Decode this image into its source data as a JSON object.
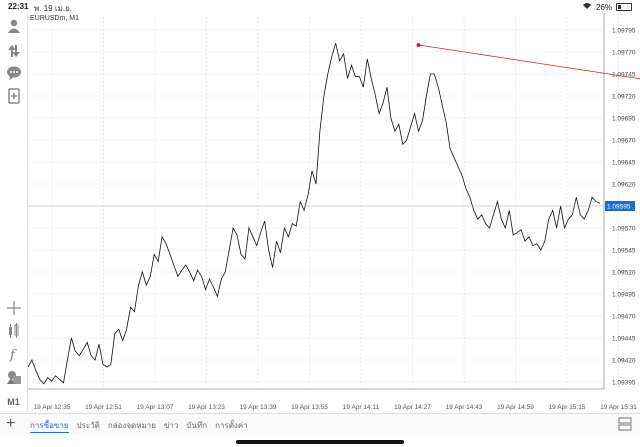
{
  "status": {
    "time": "22:31",
    "date": "พ. 19 เม.ย.",
    "battery": "26%"
  },
  "symbol": "EURUSDm, M1",
  "sidebar": {
    "icons": [
      "account-icon",
      "trade-arrows-icon",
      "chat-icon",
      "document-icon",
      "crosshair-icon",
      "indicator-icon",
      "function-icon",
      "objects-icon"
    ],
    "timeframe": "M1"
  },
  "tabs": [
    "การซื้อขาย",
    "ประวัติ",
    "กล่องจดหมาย",
    "ข่าว",
    "บันทึก",
    "การตั้งค่า"
  ],
  "active_tab": 0,
  "colors": {
    "accent": "#2a6fd6",
    "line": "#111111",
    "trendline": "#d32020",
    "price_tag": "#1e6ec8"
  },
  "chart_data": {
    "type": "line",
    "xlabels": [
      "19 Apr 12:35",
      "19 Apr 12:51",
      "19 Apr 13:07",
      "19 Apr 13:23",
      "19 Apr 13:39",
      "19 Apr 13:55",
      "19 Apr 14:11",
      "19 Apr 14:27",
      "19 Apr 14:43",
      "19 Apr 14:59",
      "19 Apr 15:15",
      "19 Apr 15:31"
    ],
    "yticks": [
      "1.09795",
      "1.09770",
      "1.09745",
      "1.09720",
      "1.09695",
      "1.09670",
      "1.09645",
      "1.09620",
      "1.09595",
      "1.09570",
      "1.09545",
      "1.09520",
      "1.09495",
      "1.09470",
      "1.09445",
      "1.09420",
      "1.09395"
    ],
    "ylim": [
      1.0938,
      1.098
    ],
    "current_price": 1.09595,
    "current_price_label": "1.09595",
    "trendline": {
      "from": {
        "x": 99,
        "y": 1.09778
      },
      "to": {
        "x": 213,
        "y": 1.097
      },
      "mid_anchor": {
        "x": 160,
        "y": 1.0974
      }
    },
    "values": [
      1.09412,
      1.0942,
      1.09408,
      1.09398,
      1.09393,
      1.094,
      1.09396,
      1.09402,
      1.09398,
      1.09394,
      1.0942,
      1.09445,
      1.0943,
      1.09425,
      1.09432,
      1.0944,
      1.09425,
      1.0942,
      1.09438,
      1.09415,
      1.09412,
      1.09415,
      1.0945,
      1.09455,
      1.09442,
      1.09455,
      1.0948,
      1.09475,
      1.09505,
      1.0952,
      1.09505,
      1.09515,
      1.0954,
      1.09532,
      1.0956,
      1.09552,
      1.0954,
      1.09527,
      1.09515,
      1.09522,
      1.09528,
      1.0952,
      1.0951,
      1.09522,
      1.09515,
      1.095,
      1.09512,
      1.09503,
      1.09492,
      1.09512,
      1.0952,
      1.09545,
      1.0957,
      1.09562,
      1.0954,
      1.09535,
      1.0957,
      1.0956,
      1.0955,
      1.09565,
      1.09578,
      1.09545,
      1.09525,
      1.09555,
      1.09542,
      1.0957,
      1.0956,
      1.09575,
      1.09572,
      1.096,
      1.0959,
      1.09608,
      1.09635,
      1.0962,
      1.0968,
      1.0972,
      1.09745,
      1.09765,
      1.0978,
      1.0976,
      1.09768,
      1.0974,
      1.09755,
      1.09742,
      1.09742,
      1.0973,
      1.09762,
      1.0974,
      1.09722,
      1.097,
      1.09712,
      1.0973,
      1.09695,
      1.0968,
      1.09688,
      1.09665,
      1.0967,
      1.09685,
      1.097,
      1.0968,
      1.09692,
      1.0972,
      1.09745,
      1.09745,
      1.0973,
      1.0971,
      1.0969,
      1.0966,
      1.0965,
      1.0964,
      1.0963,
      1.09615,
      1.09605,
      1.0959,
      1.0958,
      1.09585,
      1.09575,
      1.0957,
      1.09585,
      1.096,
      1.0958,
      1.0957,
      1.0959,
      1.09562,
      1.09565,
      1.09568,
      1.09555,
      1.0956,
      1.0955,
      1.09552,
      1.09545,
      1.09555,
      1.0958,
      1.0959,
      1.0957,
      1.09595,
      1.0957,
      1.0958,
      1.09585,
      1.09605,
      1.09585,
      1.0958,
      1.0959,
      1.09605,
      1.096,
      1.09598
    ]
  }
}
